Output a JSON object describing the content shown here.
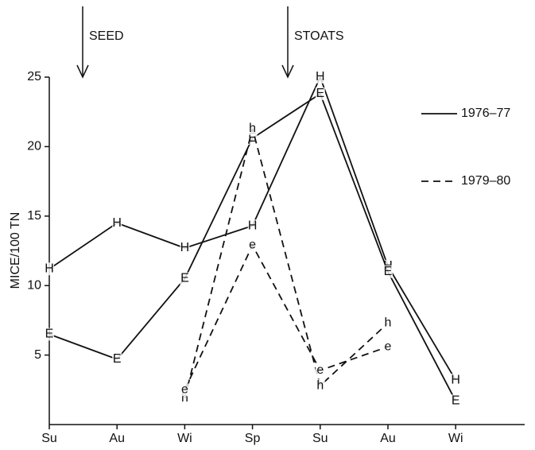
{
  "chart_data": {
    "type": "line",
    "y_label": "MICE/100 TN",
    "annotations": [
      "SEED",
      "STOATS"
    ],
    "categories": [
      "Su",
      "Au",
      "Wi",
      "Sp",
      "Su",
      "Au",
      "Wi"
    ],
    "ylim": [
      0,
      25
    ],
    "yticks": [
      5,
      10,
      15,
      20,
      25
    ],
    "legend": [
      {
        "label": "1976–77",
        "dashed": false
      },
      {
        "label": "1979–80",
        "dashed": true
      }
    ],
    "series": [
      {
        "marker": "H",
        "dashed": false,
        "color": "#111111",
        "values": [
          11.2,
          14.5,
          12.7,
          14.3,
          25,
          11.4,
          3.2
        ]
      },
      {
        "marker": "E",
        "dashed": false,
        "color": "#111111",
        "values": [
          6.5,
          4.7,
          10.5,
          20.6,
          23.8,
          11.0,
          1.7
        ]
      },
      {
        "marker": "h",
        "dashed": true,
        "color": "#111111",
        "values": [
          null,
          null,
          1.9,
          21.3,
          2.8,
          7.3,
          null
        ]
      },
      {
        "marker": "e",
        "dashed": true,
        "color": "#111111",
        "values": [
          null,
          null,
          2.5,
          12.9,
          3.9,
          5.6,
          null
        ]
      }
    ]
  }
}
